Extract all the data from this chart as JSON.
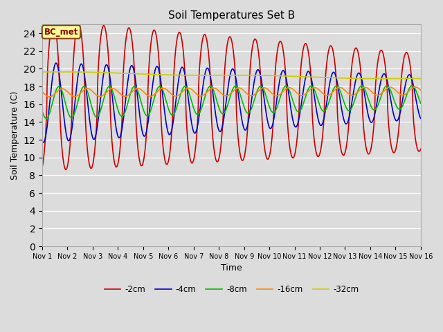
{
  "title": "Soil Temperatures Set B",
  "xlabel": "Time",
  "ylabel": "Soil Temperature (C)",
  "ylim": [
    0,
    25
  ],
  "yticks": [
    0,
    2,
    4,
    6,
    8,
    10,
    12,
    14,
    16,
    18,
    20,
    22,
    24
  ],
  "annotation": "BC_met",
  "annotation_facecolor": "#ffff99",
  "annotation_edgecolor": "#8b4513",
  "annotation_textcolor": "#8b0000",
  "bg_color": "#dcdcdc",
  "legend_labels": [
    "-2cm",
    "-4cm",
    "-8cm",
    "-16cm",
    "-32cm"
  ],
  "line_colors": [
    "#cc0000",
    "#0000cc",
    "#00bb00",
    "#ff8800",
    "#cccc00"
  ],
  "x_labels": [
    "Nov 1",
    "Nov 2",
    "Nov 3",
    "Nov 4",
    "Nov 5",
    "Nov 6",
    "Nov 7",
    "Nov 8",
    "Nov 9",
    "Nov 10",
    "Nov 11",
    "Nov 12",
    "Nov 13",
    "Nov 14",
    "Nov 15",
    "Nov 16"
  ]
}
